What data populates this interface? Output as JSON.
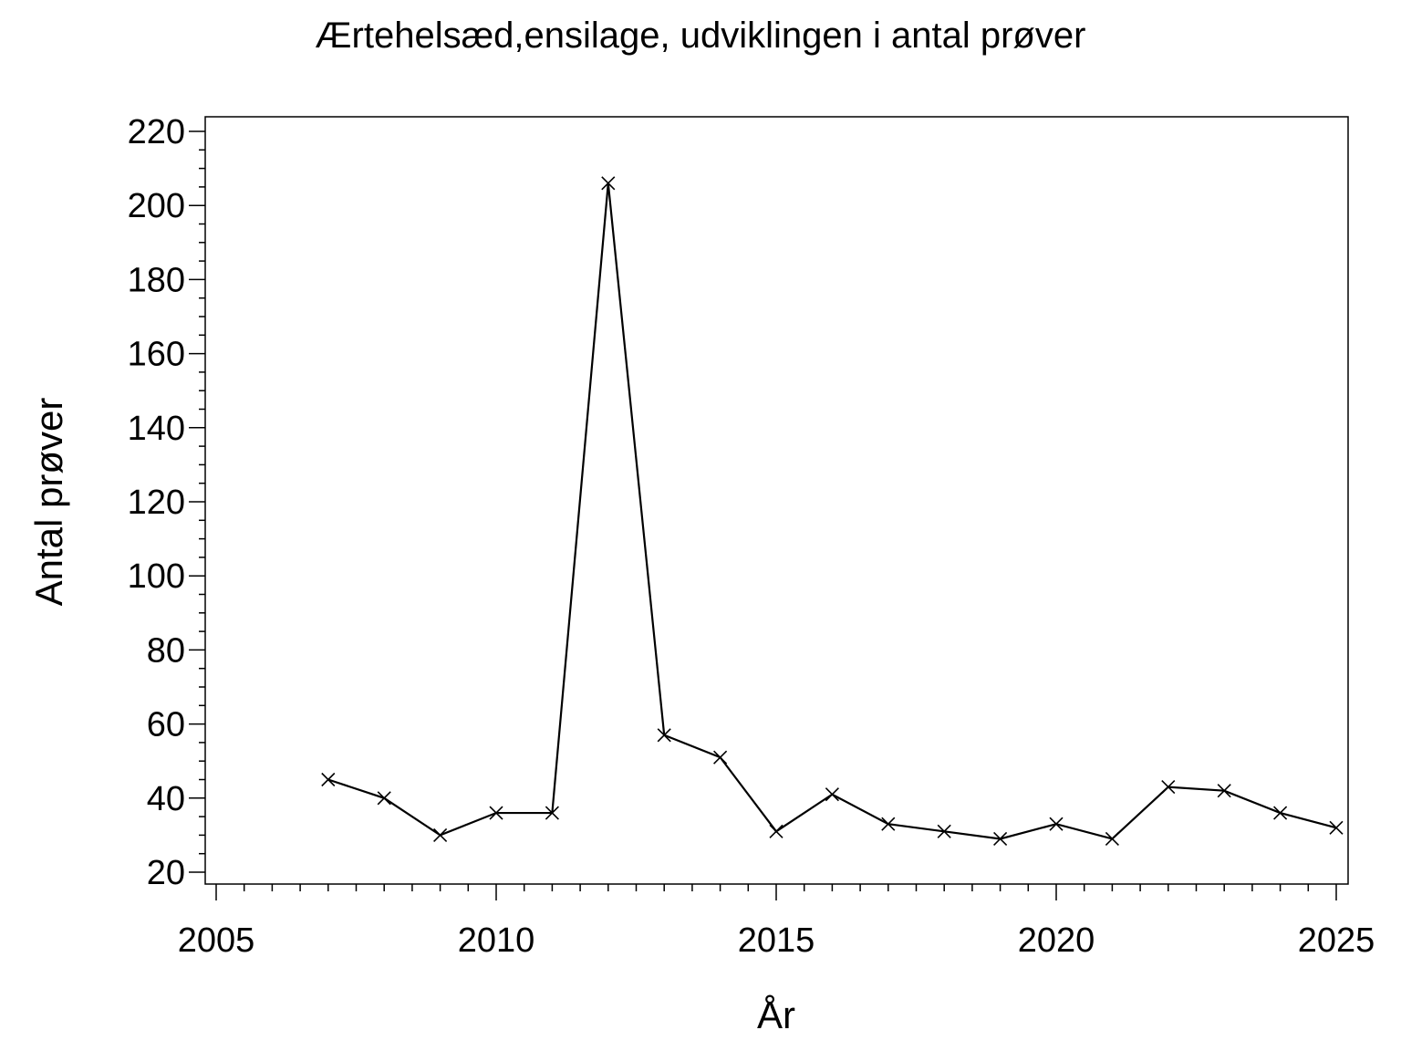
{
  "chart_data": {
    "type": "line",
    "title": "Ærtehelsæd,ensilage, udviklingen i antal prøver",
    "xlabel": "År",
    "ylabel": "Antal prøver",
    "xlim": [
      2005,
      2025
    ],
    "ylim": [
      20,
      220
    ],
    "xticks": [
      2005,
      2010,
      2015,
      2020,
      2025
    ],
    "yticks": [
      20,
      40,
      60,
      80,
      100,
      120,
      140,
      160,
      180,
      200,
      220
    ],
    "grid": false,
    "marker": "x",
    "line_color": "#000000",
    "series": [
      {
        "x": [
          2007,
          2008,
          2009,
          2010,
          2011,
          2012,
          2013,
          2014,
          2015,
          2016,
          2017,
          2018,
          2019,
          2020,
          2021,
          2022,
          2023,
          2024,
          2025
        ],
        "values": [
          45,
          40,
          30,
          36,
          36,
          206,
          57,
          51,
          31,
          41,
          33,
          31,
          29,
          33,
          29,
          43,
          42,
          36,
          32
        ]
      }
    ]
  }
}
